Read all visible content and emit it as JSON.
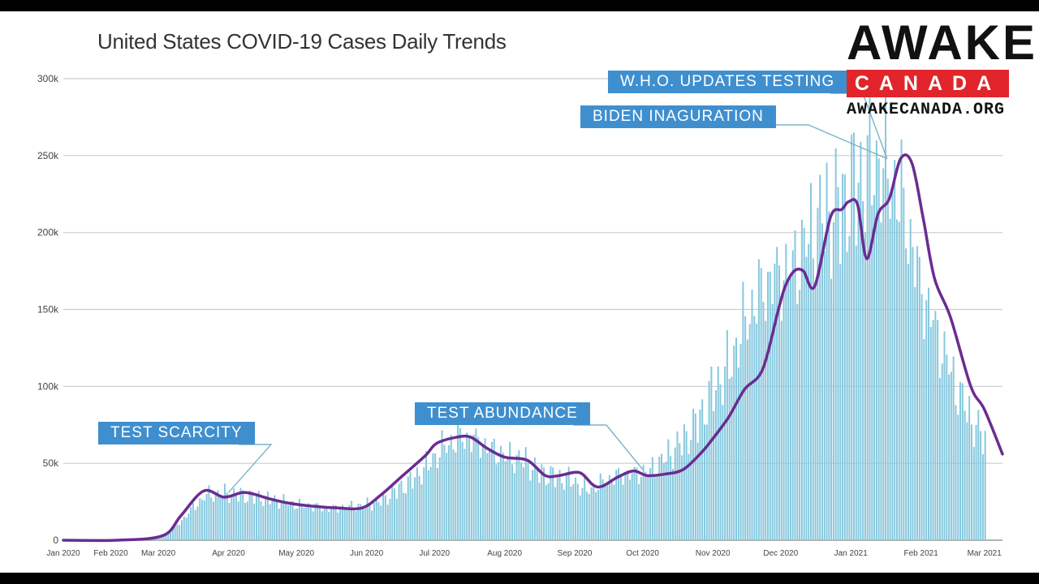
{
  "chart_data": {
    "type": "bar",
    "title": "United States COVID-19 Cases Daily Trends",
    "xlabel": "",
    "ylabel": "",
    "ylim": [
      0,
      320000
    ],
    "y_ticks": [
      {
        "value": 0,
        "label": "0"
      },
      {
        "value": 50000,
        "label": "50k"
      },
      {
        "value": 100000,
        "label": "100k"
      },
      {
        "value": 150000,
        "label": "150k"
      },
      {
        "value": 200000,
        "label": "200k"
      },
      {
        "value": 250000,
        "label": "250k"
      },
      {
        "value": 300000,
        "label": "300k"
      }
    ],
    "x_ticks": [
      {
        "date": "2020-01-22",
        "label": "Jan 2020"
      },
      {
        "date": "2020-02-12",
        "label": "Feb 2020"
      },
      {
        "date": "2020-03-04",
        "label": "Mar 2020"
      },
      {
        "date": "2020-04-04",
        "label": "Apr 2020"
      },
      {
        "date": "2020-05-04",
        "label": "May 2020"
      },
      {
        "date": "2020-06-04",
        "label": "Jun 2020"
      },
      {
        "date": "2020-07-04",
        "label": "Jul 2020"
      },
      {
        "date": "2020-08-04",
        "label": "Aug 2020"
      },
      {
        "date": "2020-09-04",
        "label": "Sep 2020"
      },
      {
        "date": "2020-10-04",
        "label": "Oct 2020"
      },
      {
        "date": "2020-11-04",
        "label": "Nov 2020"
      },
      {
        "date": "2020-12-04",
        "label": "Dec 2020"
      },
      {
        "date": "2021-01-04",
        "label": "Jan 2021"
      },
      {
        "date": "2021-02-04",
        "label": "Feb 2021"
      },
      {
        "date": "2021-03-04",
        "label": "Mar 2021"
      }
    ],
    "grid": true,
    "series": [
      {
        "type": "bar",
        "color": "#86c8de",
        "dates": [
          "2020-01-22",
          "2020-02-05",
          "2020-02-19",
          "2020-03-04",
          "2020-03-11",
          "2020-03-18",
          "2020-03-25",
          "2020-04-01",
          "2020-04-08",
          "2020-04-15",
          "2020-04-22",
          "2020-04-29",
          "2020-05-06",
          "2020-05-13",
          "2020-05-20",
          "2020-05-27",
          "2020-06-03",
          "2020-06-10",
          "2020-06-17",
          "2020-06-24",
          "2020-07-01",
          "2020-07-08",
          "2020-07-15",
          "2020-07-22",
          "2020-07-29",
          "2020-08-05",
          "2020-08-12",
          "2020-08-19",
          "2020-08-26",
          "2020-09-02",
          "2020-09-09",
          "2020-09-16",
          "2020-09-23",
          "2020-09-30",
          "2020-10-07",
          "2020-10-14",
          "2020-10-21",
          "2020-10-28",
          "2020-11-04",
          "2020-11-11",
          "2020-11-18",
          "2020-11-25",
          "2020-12-02",
          "2020-12-09",
          "2020-12-16",
          "2020-12-23",
          "2020-12-30",
          "2021-01-06",
          "2021-01-13",
          "2021-01-20",
          "2021-01-27",
          "2021-02-03",
          "2021-02-10",
          "2021-02-17",
          "2021-02-24",
          "2021-03-04"
        ],
        "values": [
          0,
          0,
          0,
          1000,
          8000,
          20000,
          30000,
          31000,
          30000,
          29000,
          27000,
          25000,
          23000,
          22000,
          21000,
          22000,
          23000,
          26000,
          33000,
          40000,
          50000,
          62000,
          68000,
          66000,
          60000,
          55000,
          53000,
          45000,
          42000,
          40000,
          33000,
          38000,
          43000,
          44000,
          46000,
          55000,
          65000,
          78000,
          100000,
          115000,
          145000,
          165000,
          175000,
          180000,
          200000,
          215000,
          220000,
          235000,
          250000,
          245000,
          220000,
          170000,
          140000,
          110000,
          85000,
          65000
        ]
      },
      {
        "type": "line",
        "name": "7-day average",
        "color": "#6a2c91",
        "dates": [
          "2020-01-22",
          "2020-02-15",
          "2020-03-06",
          "2020-03-14",
          "2020-03-24",
          "2020-04-02",
          "2020-04-10",
          "2020-04-15",
          "2020-04-22",
          "2020-05-01",
          "2020-05-12",
          "2020-05-22",
          "2020-06-02",
          "2020-06-10",
          "2020-06-20",
          "2020-06-30",
          "2020-07-05",
          "2020-07-14",
          "2020-07-20",
          "2020-07-27",
          "2020-08-04",
          "2020-08-14",
          "2020-08-22",
          "2020-08-28",
          "2020-09-06",
          "2020-09-12",
          "2020-09-16",
          "2020-09-23",
          "2020-09-30",
          "2020-10-06",
          "2020-10-14",
          "2020-10-22",
          "2020-10-30",
          "2020-11-04",
          "2020-11-11",
          "2020-11-18",
          "2020-11-26",
          "2020-12-03",
          "2020-12-06",
          "2020-12-10",
          "2020-12-14",
          "2020-12-19",
          "2020-12-26",
          "2020-12-31",
          "2021-01-03",
          "2021-01-07",
          "2021-01-11",
          "2021-01-16",
          "2021-01-21",
          "2021-01-26",
          "2021-01-31",
          "2021-02-05",
          "2021-02-10",
          "2021-02-17",
          "2021-02-26",
          "2021-03-04",
          "2021-03-12"
        ],
        "values": [
          0,
          0,
          3000,
          16000,
          32000,
          28000,
          31000,
          30000,
          27000,
          24000,
          22000,
          21000,
          21000,
          29000,
          42000,
          55000,
          63000,
          67000,
          67000,
          60000,
          54000,
          52000,
          42000,
          42000,
          44000,
          36000,
          35000,
          41000,
          45000,
          42000,
          43000,
          46000,
          57000,
          66000,
          80000,
          98000,
          111000,
          150000,
          165000,
          175000,
          175000,
          165000,
          210000,
          215000,
          220000,
          218000,
          183000,
          212000,
          222000,
          248000,
          245000,
          209000,
          170000,
          145000,
          100000,
          85000,
          56000
        ]
      }
    ],
    "annotations": [
      {
        "label": "TEST SCARCITY",
        "date": "2020-04-04",
        "value": 31000
      },
      {
        "label": "TEST ABUNDANCE",
        "date": "2020-10-04",
        "value": 46000
      },
      {
        "label": "BIDEN INAGURATION",
        "date": "2021-01-20",
        "value": 248000
      },
      {
        "label": "W.H.O. UPDATES TESTING",
        "date": "2021-01-20",
        "value": 248000
      }
    ]
  },
  "logo": {
    "line1": "AWAKE",
    "line2": "CANADA",
    "url": "AWAKECANADA.ORG",
    "colors": {
      "accent": "#e1252a",
      "text": "#111111"
    }
  }
}
